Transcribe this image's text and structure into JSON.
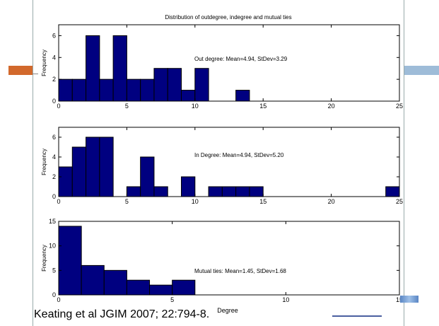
{
  "title": "Distribution of outdegree, indegree and mutual ties",
  "citation": "Keating et al JGIM 2007; 22:794-8.",
  "colors": {
    "bar": "#000080",
    "accent_left": "#d2692c",
    "accent_right": "#9ebcd8"
  },
  "chart_data": [
    {
      "type": "bar",
      "ylabel": "Frequency",
      "annotation": "Out degree: Mean=4.94, StDev=3.29",
      "xlim": [
        0,
        25
      ],
      "ylim": [
        0,
        7
      ],
      "xticks": [
        0,
        5,
        10,
        15,
        20,
        25
      ],
      "yticks": [
        0,
        2,
        4,
        6
      ],
      "bin_width": 1,
      "bin_starts": [
        0,
        1,
        2,
        3,
        4,
        5,
        6,
        7,
        8,
        9,
        10,
        13
      ],
      "values": [
        2,
        2,
        6,
        2,
        6,
        2,
        2,
        3,
        3,
        1,
        3,
        1
      ]
    },
    {
      "type": "bar",
      "ylabel": "Frequency",
      "annotation": "In Degree: Mean=4.94, StDev=5.20",
      "xlim": [
        0,
        25
      ],
      "ylim": [
        0,
        7
      ],
      "xticks": [
        0,
        5,
        10,
        15,
        20,
        25
      ],
      "yticks": [
        0,
        2,
        4,
        6
      ],
      "bin_width": 1,
      "bin_starts": [
        0,
        1,
        2,
        3,
        5,
        6,
        7,
        9,
        11,
        12,
        13,
        14,
        24
      ],
      "values": [
        3,
        5,
        6,
        6,
        1,
        4,
        1,
        2,
        1,
        1,
        1,
        1,
        1
      ]
    },
    {
      "type": "bar",
      "ylabel": "Frequency",
      "xlabel": "Degree",
      "annotation": "Mutual ties: Mean=1.45, StDev=1.68",
      "xlim": [
        0,
        15
      ],
      "ylim": [
        0,
        15
      ],
      "xticks": [
        0,
        5,
        10,
        15
      ],
      "yticks": [
        0,
        5,
        10,
        15
      ],
      "bin_width": 1,
      "bin_starts": [
        0,
        1,
        2,
        3,
        4,
        5
      ],
      "values": [
        14,
        6,
        5,
        3,
        2,
        3
      ]
    }
  ]
}
